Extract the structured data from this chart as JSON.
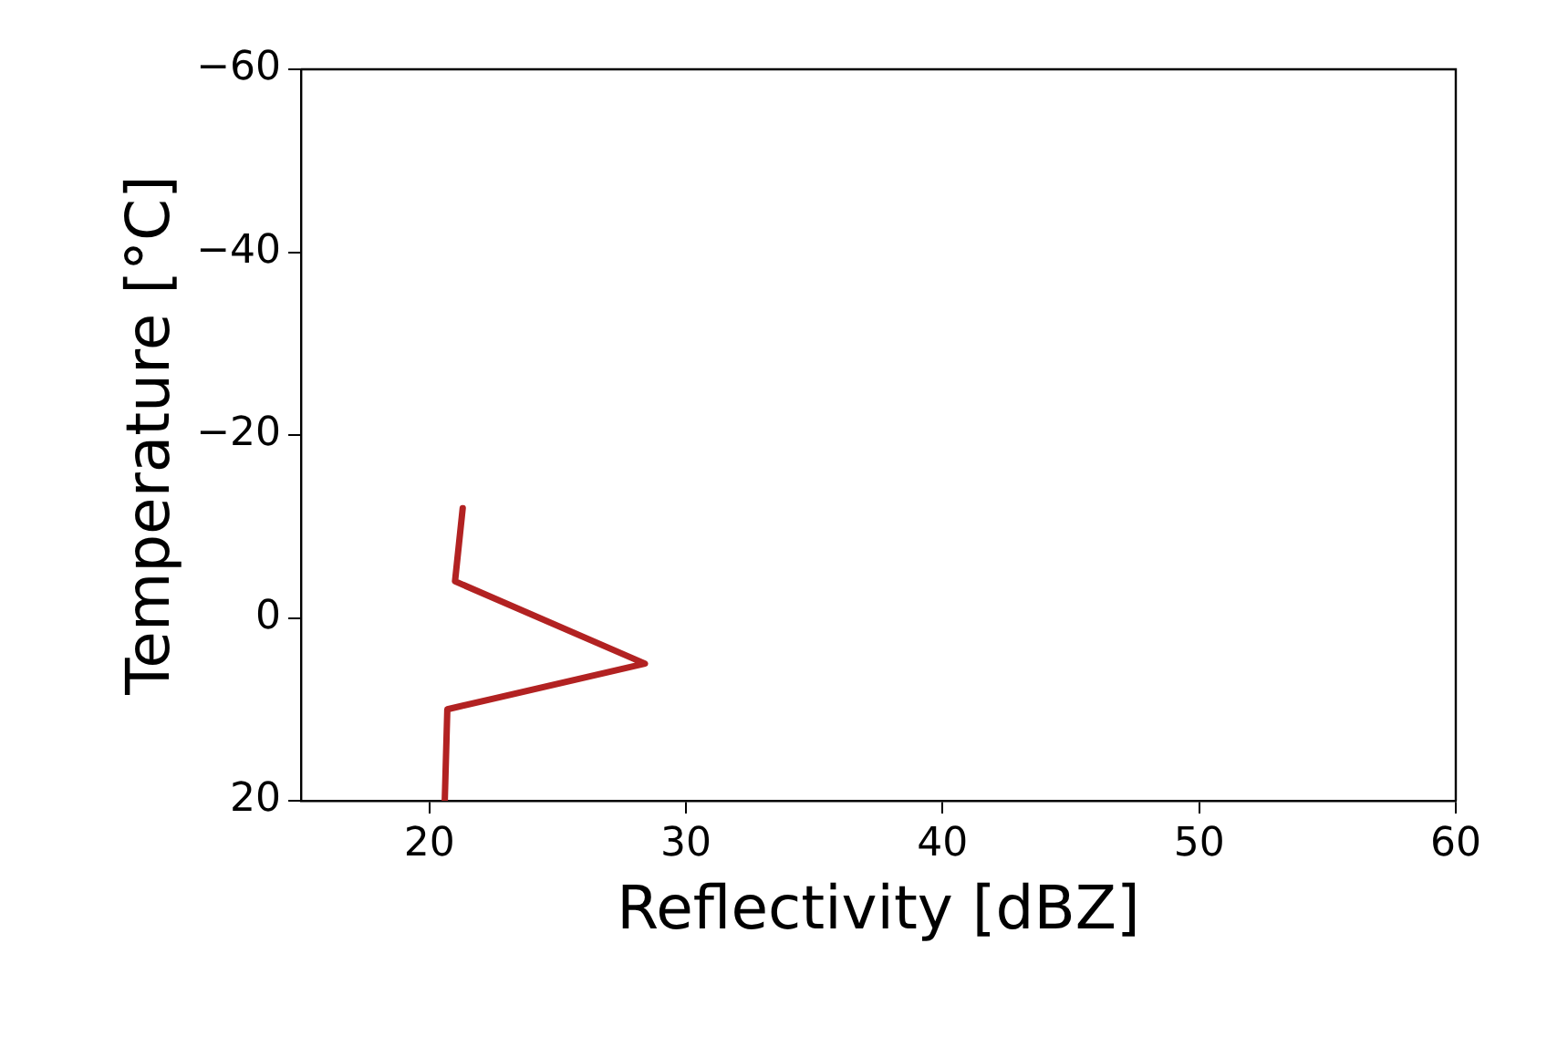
{
  "chart_data": {
    "type": "line",
    "xlabel": "Reflectivity [dBZ]",
    "ylabel": "Temperature [°C]",
    "x": [
      20.6,
      20.7,
      28.4,
      21.0,
      21.3
    ],
    "values": [
      20,
      10,
      5,
      -4,
      -12
    ],
    "color": "#b22222",
    "xlim": [
      15,
      60
    ],
    "xticks": [
      20,
      30,
      40,
      50,
      60
    ],
    "ylim": [
      20,
      -60
    ],
    "yticks": [
      20,
      0,
      -20,
      -40,
      -60
    ],
    "grid": false,
    "legend": false,
    "marker": "none",
    "line_style": "solid"
  }
}
